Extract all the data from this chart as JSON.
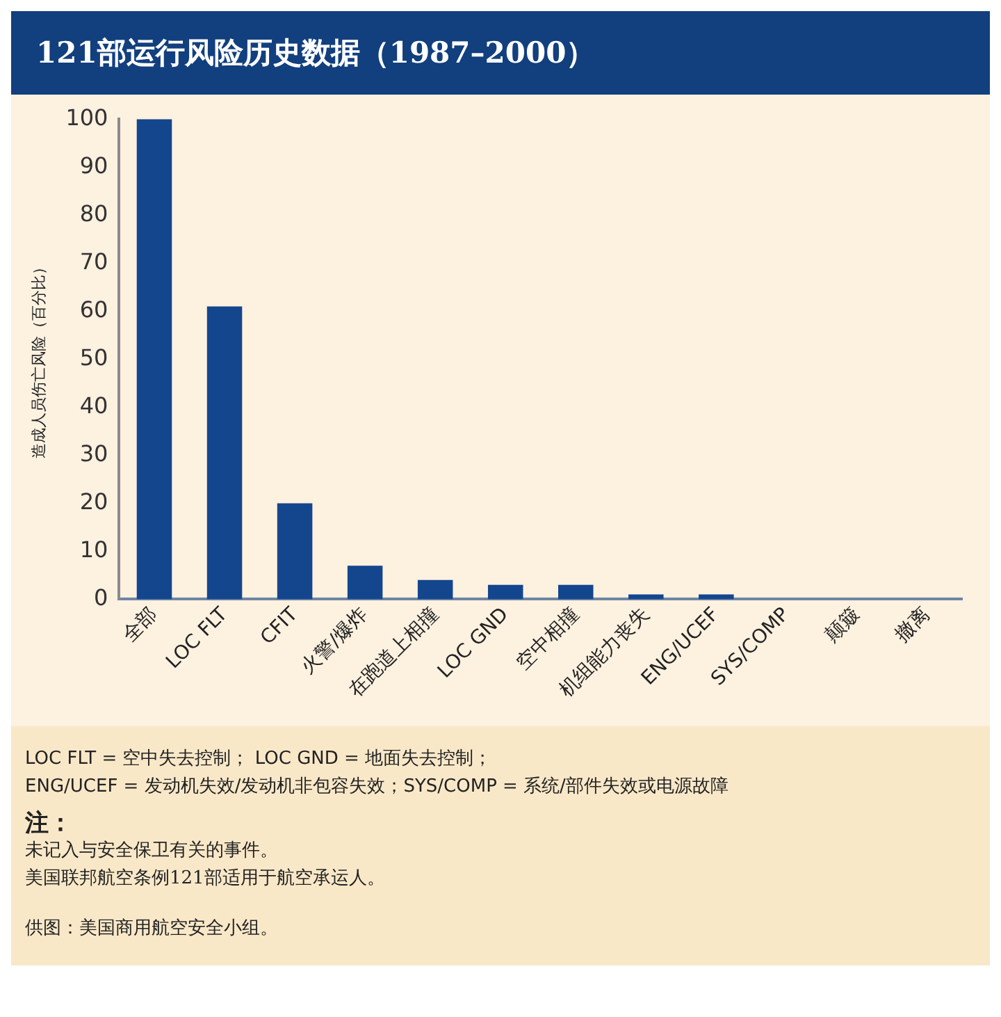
{
  "chart_data": {
    "type": "bar",
    "title": "121部运行风险历史数据（1987–2000）",
    "ylabel": "造成人员伤亡风险（百分比）",
    "categories": [
      "全部",
      "LOC FLT",
      "CFIT",
      "火警/爆炸",
      "在跑道上相撞",
      "LOC GND",
      "空中相撞",
      "机组能力丧失",
      "ENG/UCEF",
      "SYS/COMP",
      "颠簸",
      "撤离"
    ],
    "values": [
      100,
      61,
      20,
      7,
      4,
      3,
      3,
      1,
      1,
      0,
      0,
      0
    ],
    "color": "#14468e",
    "ylim": [
      0,
      100
    ],
    "yticks": [
      0,
      10,
      20,
      30,
      40,
      50,
      60,
      70,
      80,
      90,
      100
    ],
    "grid": false,
    "legend": false,
    "annotations": [
      "LOC FLT = 空中失去控制； LOC GND = 地面失去控制；",
      "ENG/UCEF = 发动机失效/发动机非包容失效；SYS/COMP = 系统/部件失效或电源故障",
      "注：",
      "未记入与安全保卫有关的事件。",
      "美国联邦航空条例121部适用于航空承运人。",
      "供图：美国商用航空安全小组。"
    ]
  }
}
